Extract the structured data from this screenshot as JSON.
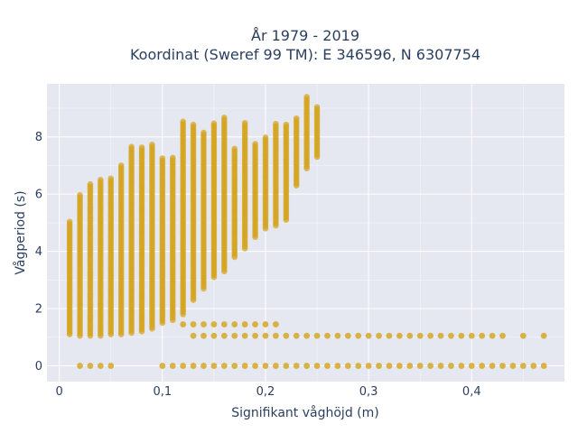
{
  "chart_data": {
    "type": "scatter",
    "title_line1": "År 1979 - 2019",
    "title_line2": "Koordinat (Sweref 99 TM): E 346596, N 6307754",
    "xlabel": "Signifikant våghöjd (m)",
    "ylabel": "Vågperiod (s)",
    "xlim": [
      -0.012,
      0.49
    ],
    "ylim": [
      -0.55,
      9.85
    ],
    "x_ticks": [
      0,
      0.1,
      0.2,
      0.3,
      0.4
    ],
    "x_tick_labels": [
      "0",
      "0,1",
      "0,2",
      "0,3",
      "0,4"
    ],
    "y_ticks": [
      0,
      2,
      4,
      6,
      8
    ],
    "y_tick_labels": [
      "0",
      "2",
      "4",
      "6",
      "8"
    ],
    "grid": true,
    "legend": "none",
    "marker_color": "#d4a21a",
    "background_color": "#e5e8f0",
    "series": [
      {
        "columns": [
          {
            "x": 0.01,
            "ymin": 1.1,
            "ymax": 5.1
          },
          {
            "x": 0.02,
            "ymin": 1.05,
            "ymax": 6.0
          },
          {
            "x": 0.03,
            "ymin": 1.05,
            "ymax": 6.4
          },
          {
            "x": 0.04,
            "ymin": 1.05,
            "ymax": 6.55
          },
          {
            "x": 0.05,
            "ymin": 1.1,
            "ymax": 6.6
          },
          {
            "x": 0.06,
            "ymin": 1.1,
            "ymax": 7.0
          },
          {
            "x": 0.07,
            "ymin": 1.15,
            "ymax": 7.7
          },
          {
            "x": 0.08,
            "ymin": 1.2,
            "ymax": 7.7
          },
          {
            "x": 0.09,
            "ymin": 1.3,
            "ymax": 7.8
          },
          {
            "x": 0.1,
            "ymin": 1.5,
            "ymax": 7.3
          },
          {
            "x": 0.11,
            "ymin": 1.6,
            "ymax": 7.3
          },
          {
            "x": 0.12,
            "ymin": 1.8,
            "ymax": 8.6
          },
          {
            "x": 0.13,
            "ymin": 2.3,
            "ymax": 8.5
          },
          {
            "x": 0.14,
            "ymin": 2.7,
            "ymax": 8.2
          },
          {
            "x": 0.15,
            "ymin": 3.1,
            "ymax": 8.5
          },
          {
            "x": 0.16,
            "ymin": 3.3,
            "ymax": 8.7
          },
          {
            "x": 0.17,
            "ymin": 3.8,
            "ymax": 7.6
          },
          {
            "x": 0.18,
            "ymin": 4.1,
            "ymax": 8.5
          },
          {
            "x": 0.19,
            "ymin": 4.5,
            "ymax": 7.8
          },
          {
            "x": 0.2,
            "ymin": 4.8,
            "ymax": 8.0
          },
          {
            "x": 0.21,
            "ymin": 4.9,
            "ymax": 8.5
          },
          {
            "x": 0.22,
            "ymin": 5.1,
            "ymax": 8.5
          },
          {
            "x": 0.23,
            "ymin": 6.3,
            "ymax": 8.7
          },
          {
            "x": 0.24,
            "ymin": 6.9,
            "ymax": 9.4
          },
          {
            "x": 0.25,
            "ymin": 7.3,
            "ymax": 9.1
          }
        ],
        "rows": [
          {
            "y": 0,
            "x": [
              0.02,
              0.03,
              0.04,
              0.05,
              0.1,
              0.11,
              0.12,
              0.13,
              0.14,
              0.15,
              0.16,
              0.17,
              0.18,
              0.19,
              0.2,
              0.21,
              0.22,
              0.23,
              0.24,
              0.25,
              0.26,
              0.27,
              0.28,
              0.29,
              0.3,
              0.31,
              0.32,
              0.33,
              0.34,
              0.35,
              0.36,
              0.37,
              0.38,
              0.39,
              0.4,
              0.41,
              0.42,
              0.43,
              0.44,
              0.45,
              0.46,
              0.47
            ]
          },
          {
            "y": 1.05,
            "x": [
              0.13,
              0.14,
              0.15,
              0.16,
              0.17,
              0.18,
              0.19,
              0.2,
              0.21,
              0.22,
              0.23,
              0.24,
              0.25,
              0.26,
              0.27,
              0.28,
              0.29,
              0.3,
              0.31,
              0.32,
              0.33,
              0.34,
              0.35,
              0.36,
              0.37,
              0.38,
              0.39,
              0.4,
              0.41,
              0.42,
              0.43,
              0.45,
              0.47
            ]
          },
          {
            "y": 1.45,
            "x": [
              0.12,
              0.13,
              0.14,
              0.15,
              0.16,
              0.17,
              0.18,
              0.19,
              0.2,
              0.21
            ]
          }
        ]
      }
    ]
  }
}
